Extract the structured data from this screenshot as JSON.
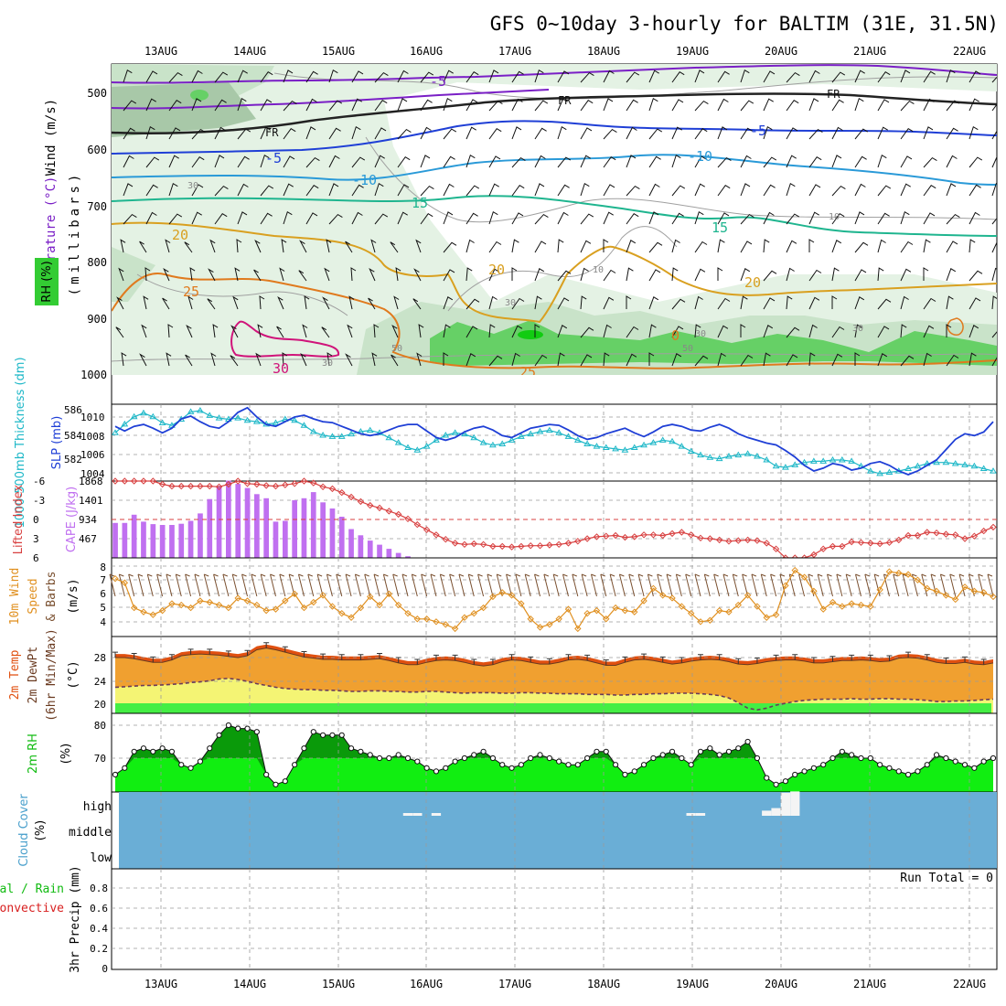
{
  "title": "GFS 0~10day 3-hourly for BALTIM (31E, 31.5N)",
  "date_labels": [
    "13AUG",
    "14AUG",
    "15AUG",
    "16AUG",
    "17AUG",
    "18AUG",
    "19AUG",
    "20AUG",
    "21AUG",
    "22AUG"
  ],
  "colors": {
    "rh_green": "#33cc33",
    "rh_light": "#dcefdc",
    "purple": "#7a1fc6",
    "blue": "#1f3fd6",
    "skyblue": "#2a9ad8",
    "teal": "#1fb58f",
    "gold": "#d9a020",
    "orange": "#e07a1e",
    "magenta": "#d0147a",
    "cyan": "#1fb8c8",
    "cape": "#c070f0",
    "li": "#d84040",
    "wind": "#e09020",
    "temp_fill": "#f0a030",
    "temp_dark": "#e05010",
    "dew_fill": "#f4f474",
    "rh2m": "#11ee11",
    "rh2m_dark": "#0a9a0a",
    "cloud": "#6aaed6"
  },
  "panels": {
    "upper": {
      "ylabel_wind": "Wind (m/s)",
      "ylabel_temp": "Temperature (°C)",
      "ylabel_rh": "RH (%)",
      "ylabel_mb": "(millibars)",
      "levels": [
        "500",
        "600",
        "700",
        "800",
        "900",
        "1000"
      ],
      "contour_labels": [
        {
          "text": "-5",
          "color": "purple"
        },
        {
          "text": "FR",
          "color": "black"
        },
        {
          "text": "FR",
          "color": "black"
        },
        {
          "text": "FR",
          "color": "black"
        },
        {
          "text": "-5",
          "color": "blue"
        },
        {
          "text": "-5",
          "color": "blue"
        },
        {
          "text": "-10",
          "color": "skyblue"
        },
        {
          "text": "-10",
          "color": "skyblue"
        },
        {
          "text": "15",
          "color": "teal"
        },
        {
          "text": "15",
          "color": "teal"
        },
        {
          "text": "20",
          "color": "gold"
        },
        {
          "text": "20",
          "color": "gold"
        },
        {
          "text": "20",
          "color": "gold"
        },
        {
          "text": "25",
          "color": "orange"
        },
        {
          "text": "25",
          "color": "orange"
        },
        {
          "text": "30",
          "color": "magenta"
        },
        {
          "text": "0",
          "color": "orange"
        },
        {
          "text": "30",
          "color": "grey"
        },
        {
          "text": "10",
          "color": "grey"
        },
        {
          "text": "10",
          "color": "grey"
        },
        {
          "text": "30",
          "color": "grey"
        },
        {
          "text": "50",
          "color": "grey"
        },
        {
          "text": "50",
          "color": "grey"
        },
        {
          "text": "30",
          "color": "grey"
        },
        {
          "text": "30",
          "color": "grey"
        },
        {
          "text": "30",
          "color": "grey"
        }
      ]
    },
    "slp": {
      "ylabel_left": "1000-500mb Thickness (dm)",
      "ylabel_right": "SLP (mb)",
      "left_ticks": [
        "586",
        "584",
        "582"
      ],
      "right_ticks": [
        "1010",
        "1008",
        "1006",
        "1004"
      ]
    },
    "cape": {
      "ylabel_left": "Lifted Index",
      "ylabel_right": "CAPE (J/kg)",
      "li_ticks": [
        "-6",
        "-3",
        "0",
        "3",
        "6"
      ],
      "cape_ticks": [
        "1868",
        "1401",
        "934",
        "467"
      ]
    },
    "wind": {
      "ylabel_a": "10m Wind",
      "ylabel_b": "Speed",
      "ylabel_c": "& Barbs",
      "unit": "(m/s)",
      "ticks": [
        "8",
        "7",
        "6",
        "5",
        "4"
      ]
    },
    "temp": {
      "ylabel_a": "2m Temp",
      "ylabel_b": "2m DewPt",
      "ylabel_c": "(6hr Min/Max)",
      "unit": "(°C)",
      "ticks": [
        "28",
        "24",
        "20"
      ]
    },
    "rh": {
      "ylabel": "2m RH",
      "unit": "(%)",
      "ticks": [
        "80",
        "70"
      ]
    },
    "cloud": {
      "ylabel": "Cloud Cover",
      "unit": "(%)",
      "levels": [
        "high",
        "middle",
        "low"
      ]
    },
    "precip": {
      "ylabel_a": "tal / Rain",
      "ylabel_b": "Convective",
      "ylabel_c": "3hr Precip (mm)",
      "run_total": "Run Total = 0",
      "ticks": [
        "0.8",
        "0.6",
        "0.4",
        "0.2",
        "0"
      ]
    }
  },
  "chart_data": [
    {
      "type": "line",
      "name": "SLP (mb)",
      "units": "mb",
      "ylim": [
        1003,
        1011
      ],
      "values": [
        1009.0,
        1008.5,
        1009.0,
        1009.2,
        1008.8,
        1008.3,
        1008.8,
        1009.8,
        1010.1,
        1009.5,
        1009.0,
        1008.8,
        1009.5,
        1010.5,
        1011.0,
        1010.0,
        1009.2,
        1009.0,
        1009.5,
        1010.0,
        1010.2,
        1009.8,
        1009.5,
        1009.4,
        1009.0,
        1008.6,
        1008.2,
        1008.0,
        1008.2,
        1008.6,
        1009.0,
        1009.2,
        1009.2,
        1008.5,
        1007.8,
        1007.5,
        1007.8,
        1008.4,
        1008.8,
        1009.0,
        1008.6,
        1008.0,
        1007.8,
        1008.3,
        1008.8,
        1009.0,
        1009.2,
        1009.1,
        1008.6,
        1008.0,
        1007.6,
        1007.8,
        1008.2,
        1008.5,
        1008.8,
        1008.3,
        1007.9,
        1008.4,
        1009.0,
        1009.2,
        1009.0,
        1008.6,
        1008.5,
        1008.9,
        1009.2,
        1008.8,
        1008.2,
        1007.8,
        1007.5,
        1007.2,
        1007.0,
        1006.4,
        1005.7,
        1004.8,
        1004.2,
        1004.5,
        1005.0,
        1004.8,
        1004.3,
        1004.5,
        1005.0,
        1005.2,
        1004.8,
        1004.2,
        1003.8,
        1004.2,
        1004.8,
        1005.4,
        1006.5,
        1007.6,
        1008.2,
        1008.0,
        1008.4,
        1009.5
      ]
    },
    {
      "type": "line",
      "name": "1000-500mb Thickness (dm)",
      "units": "dm",
      "ylim": [
        580.5,
        586.5
      ],
      "values": [
        584.2,
        584.9,
        585.5,
        585.8,
        585.5,
        585.0,
        584.8,
        585.3,
        585.9,
        586.0,
        585.6,
        585.4,
        585.3,
        585.4,
        585.2,
        585.1,
        584.9,
        585.0,
        585.3,
        585.2,
        584.8,
        584.3,
        584.0,
        583.9,
        583.9,
        584.1,
        584.3,
        584.4,
        584.2,
        583.8,
        583.4,
        583.0,
        582.8,
        583.1,
        583.6,
        584.0,
        584.2,
        584.1,
        583.8,
        583.4,
        583.2,
        583.3,
        583.6,
        583.9,
        584.1,
        584.3,
        584.4,
        584.2,
        583.9,
        583.6,
        583.3,
        583.1,
        583.0,
        582.9,
        582.8,
        583.0,
        583.2,
        583.4,
        583.6,
        583.5,
        583.1,
        582.7,
        582.4,
        582.2,
        582.1,
        582.3,
        582.4,
        582.5,
        582.3,
        582.0,
        581.5,
        581.4,
        581.6,
        581.8,
        581.9,
        581.9,
        582.0,
        582.0,
        581.9,
        581.5,
        581.1,
        580.9,
        581.0,
        581.1,
        581.3,
        581.5,
        581.7,
        581.8,
        581.8,
        581.7,
        581.6,
        581.5,
        581.3,
        581.1
      ]
    },
    {
      "type": "bar",
      "name": "CAPE (J/kg)",
      "units": "J/kg",
      "ylim": [
        0,
        1868
      ],
      "values": [
        850,
        850,
        1050,
        880,
        820,
        800,
        800,
        830,
        900,
        1080,
        1430,
        1750,
        1880,
        1800,
        1700,
        1550,
        1450,
        880,
        900,
        1400,
        1450,
        1600,
        1350,
        1200,
        1000,
        700,
        550,
        420,
        320,
        220,
        120,
        40,
        0,
        0,
        0,
        0,
        0,
        0,
        0,
        0,
        0,
        0,
        0,
        0,
        0,
        0,
        0,
        0,
        0,
        0,
        0,
        0,
        0,
        0,
        0,
        0,
        0,
        0,
        0,
        0,
        0,
        0,
        0,
        0,
        0,
        0,
        0,
        0,
        0,
        0,
        0,
        0,
        0,
        0,
        0,
        0,
        0,
        0,
        0,
        0,
        0,
        0,
        0,
        0,
        0,
        0,
        0,
        0,
        0,
        0,
        0,
        0,
        0,
        0
      ]
    },
    {
      "type": "line",
      "name": "Lifted Index",
      "units": "K",
      "ylim": [
        6,
        -6
      ],
      "values": [
        -6.1,
        -6.1,
        -6.1,
        -6.0,
        -6.0,
        -5.5,
        -5.2,
        -5.2,
        -5.2,
        -5.2,
        -5.2,
        -5.1,
        -5.5,
        -6.0,
        -5.6,
        -5.5,
        -5.3,
        -5.2,
        -5.4,
        -5.6,
        -6.0,
        -5.7,
        -5.1,
        -4.8,
        -4.2,
        -3.5,
        -2.8,
        -2.2,
        -1.8,
        -1.3,
        -0.8,
        -0.1,
        0.8,
        1.6,
        2.4,
        3.1,
        3.7,
        3.9,
        3.8,
        3.9,
        4.2,
        4.2,
        4.3,
        4.2,
        4.1,
        4.1,
        4.0,
        3.9,
        3.7,
        3.4,
        3.0,
        2.7,
        2.6,
        2.5,
        2.8,
        2.7,
        2.4,
        2.4,
        2.5,
        2.2,
        2.0,
        2.4,
        2.9,
        3.0,
        3.2,
        3.4,
        3.3,
        3.2,
        3.3,
        3.7,
        4.6,
        6.1,
        6.3,
        6.1,
        5.5,
        4.6,
        4.2,
        4.2,
        3.5,
        3.6,
        3.7,
        3.8,
        3.6,
        3.2,
        2.5,
        2.5,
        2.0,
        2.1,
        2.3,
        2.4,
        3.0,
        2.6,
        1.8,
        1.2
      ]
    },
    {
      "type": "line",
      "name": "10m Wind Speed (m/s)",
      "units": "m/s",
      "ylim": [
        3,
        8.4
      ],
      "values": [
        7.1,
        6.8,
        5.0,
        4.7,
        4.5,
        4.8,
        5.3,
        5.2,
        5.0,
        5.5,
        5.4,
        5.2,
        5.0,
        5.7,
        5.5,
        5.2,
        4.8,
        4.9,
        5.5,
        6.0,
        5.0,
        5.4,
        5.9,
        5.1,
        4.6,
        4.3,
        5.0,
        5.8,
        5.2,
        6.0,
        5.2,
        4.6,
        4.2,
        4.2,
        4.0,
        3.8,
        3.5,
        4.3,
        4.6,
        5.0,
        5.8,
        6.1,
        5.9,
        5.3,
        4.2,
        3.6,
        3.8,
        4.2,
        4.9,
        3.5,
        4.6,
        4.8,
        4.2,
        5.0,
        4.8,
        4.7,
        5.5,
        6.4,
        5.9,
        5.7,
        5.1,
        4.6,
        4.0,
        4.1,
        4.8,
        4.7,
        5.2,
        5.9,
        5.1,
        4.3,
        4.5,
        6.6,
        7.7,
        7.2,
        6.2,
        4.9,
        5.4,
        5.1,
        5.3,
        5.2,
        5.1,
        6.3,
        7.6,
        7.5,
        7.4,
        7.0,
        6.4,
        6.2,
        5.9,
        5.6,
        6.5,
        6.2,
        6.1,
        5.8
      ]
    },
    {
      "type": "area",
      "name": "2m Temperature (°C)",
      "units": "°C",
      "ylim": [
        19,
        30
      ],
      "values": [
        28.0,
        28.0,
        27.8,
        27.5,
        27.2,
        27.2,
        27.6,
        28.3,
        28.5,
        28.6,
        28.5,
        28.4,
        28.2,
        28.0,
        28.3,
        29.3,
        29.6,
        29.3,
        28.9,
        28.5,
        28.1,
        27.9,
        27.7,
        27.7,
        27.6,
        27.6,
        27.6,
        27.7,
        27.8,
        27.5,
        27.1,
        26.8,
        26.8,
        27.2,
        27.5,
        27.6,
        27.5,
        27.2,
        26.8,
        26.6,
        26.8,
        27.3,
        27.6,
        27.5,
        27.2,
        26.9,
        26.9,
        27.2,
        27.6,
        27.7,
        27.5,
        27.1,
        26.7,
        26.7,
        27.2,
        27.6,
        27.7,
        27.5,
        27.2,
        26.9,
        27.1,
        27.4,
        27.6,
        27.7,
        27.6,
        27.3,
        26.9,
        26.8,
        27.0,
        27.3,
        27.5,
        27.6,
        27.6,
        27.4,
        27.1,
        27.1,
        27.3,
        27.5,
        27.5,
        27.6,
        27.5,
        27.3,
        27.4,
        27.9,
        28.0,
        27.9,
        27.6,
        27.2,
        27.0,
        27.0,
        27.2,
        26.9,
        26.8,
        27.1
      ]
    },
    {
      "type": "line",
      "name": "2m DewPt (°C)",
      "units": "°C",
      "ylim": [
        19,
        30
      ],
      "values": [
        23.0,
        23.1,
        23.2,
        23.3,
        23.3,
        23.4,
        23.5,
        23.6,
        23.8,
        23.9,
        24.1,
        24.4,
        24.5,
        24.3,
        24.0,
        23.6,
        23.3,
        23.0,
        22.8,
        22.7,
        22.6,
        22.6,
        22.5,
        22.5,
        22.4,
        22.3,
        22.3,
        22.4,
        22.4,
        22.3,
        22.3,
        22.2,
        22.2,
        22.3,
        22.3,
        22.2,
        22.1,
        22.0,
        22.1,
        22.1,
        22.1,
        22.0,
        22.0,
        22.1,
        22.1,
        22.0,
        22.0,
        21.9,
        21.9,
        21.9,
        21.8,
        21.8,
        21.8,
        21.7,
        21.7,
        21.8,
        21.8,
        21.9,
        21.9,
        22.0,
        22.0,
        22.0,
        21.9,
        21.8,
        21.6,
        21.2,
        20.4,
        19.5,
        19.2,
        19.5,
        20.0,
        20.3,
        20.6,
        20.8,
        20.9,
        21.0,
        21.0,
        21.0,
        21.1,
        21.0,
        21.0,
        21.1,
        21.1,
        21.0,
        21.0,
        20.9,
        20.8,
        20.6,
        20.6,
        20.7,
        20.7,
        20.8,
        20.9,
        21.0
      ]
    },
    {
      "type": "area",
      "name": "2m RH (%)",
      "units": "%",
      "ylim": [
        60,
        82
      ],
      "values": [
        65,
        67,
        72,
        73,
        72,
        73,
        72,
        68,
        67,
        69,
        73,
        77,
        80,
        79,
        79,
        78,
        65,
        62,
        63,
        68,
        73,
        78,
        77,
        77,
        77,
        73,
        72,
        71,
        70,
        70,
        71,
        70,
        69,
        67,
        66,
        67,
        69,
        70,
        71,
        72,
        70,
        68,
        67,
        68,
        70,
        71,
        70,
        69,
        68,
        68,
        70,
        72,
        72,
        68,
        65,
        66,
        68,
        70,
        71,
        72,
        70,
        68,
        72,
        73,
        71,
        72,
        73,
        75,
        70,
        64,
        62,
        63,
        65,
        66,
        67,
        68,
        70,
        72,
        71,
        70,
        70,
        68,
        67,
        66,
        65,
        66,
        68,
        71,
        70,
        69,
        68,
        67,
        69,
        70
      ]
    },
    {
      "type": "bar",
      "name": "Cloud Cover (%)",
      "units": "%",
      "series": [
        {
          "name": "high",
          "values": [
            0,
            0,
            0,
            0,
            0,
            0,
            0,
            0,
            0,
            0,
            0,
            0,
            0,
            0,
            0,
            0,
            0,
            0,
            0,
            0,
            0,
            0,
            0,
            0,
            0,
            0,
            0,
            0,
            0,
            0,
            0,
            5,
            5,
            0,
            5,
            0,
            0,
            0,
            0,
            0,
            0,
            0,
            0,
            0,
            0,
            0,
            0,
            0,
            0,
            0,
            0,
            0,
            0,
            0,
            0,
            0,
            0,
            0,
            0,
            0,
            0,
            10,
            10,
            0,
            0,
            0,
            0,
            0,
            0,
            20,
            30,
            90,
            95,
            0,
            0,
            0,
            0,
            0,
            0,
            0,
            0,
            0,
            0,
            0,
            0,
            0,
            0,
            0,
            0,
            0,
            0,
            0,
            0,
            0
          ]
        }
      ]
    },
    {
      "type": "bar",
      "name": "3hr Precip (mm)",
      "units": "mm",
      "ylim": [
        0,
        0.9
      ],
      "values": []
    }
  ]
}
